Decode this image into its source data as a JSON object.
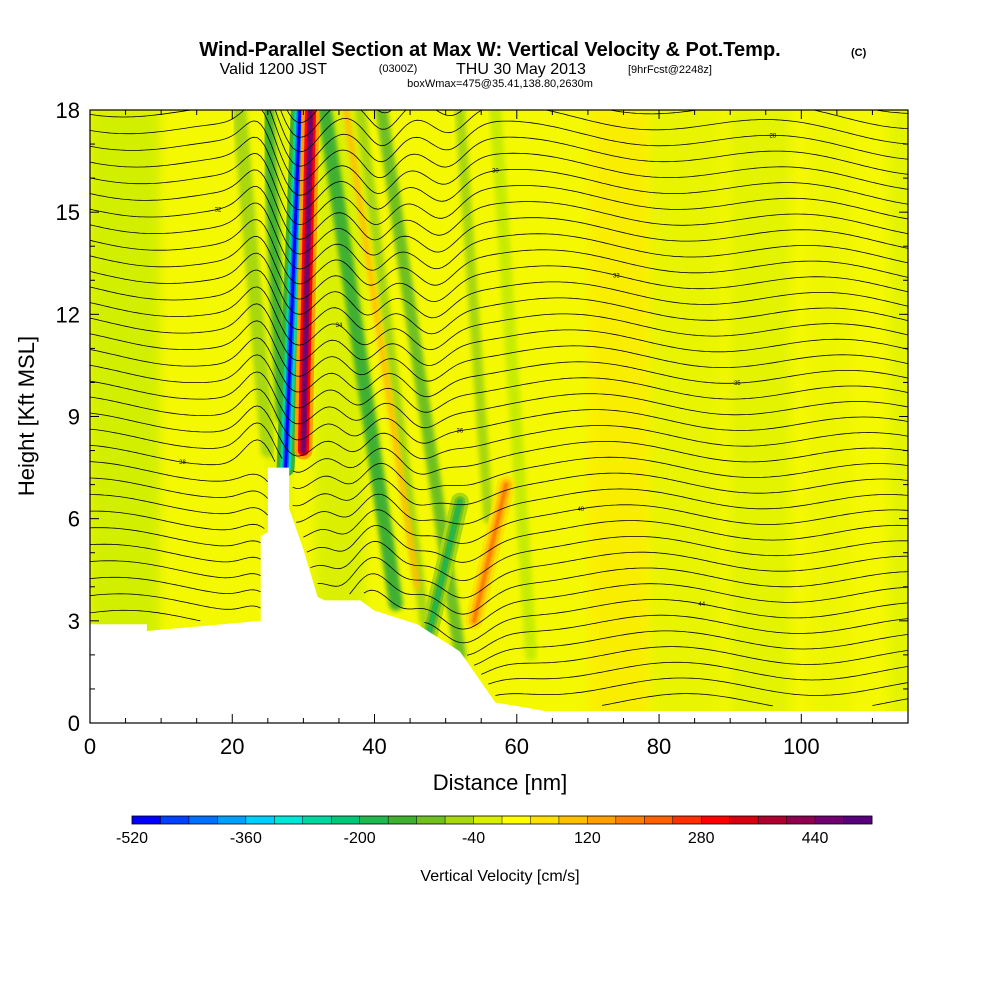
{
  "chart_data": {
    "type": "heatmap",
    "title": "Wind-Parallel Section at Max W: Vertical Velocity & Pot.Temp.",
    "title_mark": "(C)",
    "subtitle_pre": "Valid 1200 JST",
    "subtitle_utc": "(0300Z)",
    "subtitle_post": "THU 30 May 2013",
    "subtitle_fcst": "[9hrFcst@2248z]",
    "subtitle2": "boxWmax=475@35.41,138.80,2630m",
    "xlabel": "Distance [nm]",
    "ylabel": "Height [Kft MSL]",
    "xlim": [
      0,
      115
    ],
    "ylim": [
      0,
      18
    ],
    "x_ticks": [
      0,
      20,
      40,
      60,
      80,
      100
    ],
    "y_ticks": [
      0,
      3,
      6,
      9,
      12,
      15,
      18
    ],
    "colorbar": {
      "label": "Vertical Velocity [cm/s]",
      "min": -520,
      "max": 520,
      "step": 40,
      "tick_labels": [
        "-520",
        "-360",
        "-200",
        "-40",
        "120",
        "280",
        "440"
      ],
      "colors": [
        "#0000ff",
        "#0040ff",
        "#0070ff",
        "#00a0ff",
        "#00d0ff",
        "#00e8d8",
        "#00d8a0",
        "#00c878",
        "#20b850",
        "#40b030",
        "#70c020",
        "#a8d810",
        "#d8f000",
        "#ffff00",
        "#ffe000",
        "#ffc000",
        "#ffa000",
        "#ff8000",
        "#ff6000",
        "#ff3000",
        "#ff0000",
        "#d80010",
        "#b00030",
        "#900050",
        "#700070",
        "#58007c"
      ]
    },
    "terrain_profile": [
      [
        0,
        2.9
      ],
      [
        8,
        2.9
      ],
      [
        8,
        2.7
      ],
      [
        24,
        3.0
      ],
      [
        24,
        5.5
      ],
      [
        25,
        5.6
      ],
      [
        25,
        7.5
      ],
      [
        28,
        7.5
      ],
      [
        28,
        6.3
      ],
      [
        30,
        5.1
      ],
      [
        32,
        3.7
      ],
      [
        33,
        3.6
      ],
      [
        38,
        3.6
      ],
      [
        40,
        3.3
      ],
      [
        46,
        2.9
      ],
      [
        52,
        2.1
      ],
      [
        55,
        1.2
      ],
      [
        57,
        0.6
      ],
      [
        60,
        0.5
      ],
      [
        64,
        0.35
      ],
      [
        115,
        0.35
      ]
    ],
    "vertical_velocity_features": [
      {
        "kind": "downdraft",
        "x": 27.5,
        "y_range": [
          7.5,
          18
        ],
        "value": -520
      },
      {
        "kind": "updraft",
        "x": 30.0,
        "y_range": [
          8,
          18
        ],
        "value": 475
      },
      {
        "kind": "downdraft",
        "x": 47.5,
        "y_range": [
          2.5,
          6.5
        ],
        "value": -200
      },
      {
        "kind": "updraft",
        "x": 54.0,
        "y_range": [
          3,
          7
        ],
        "value": 160
      }
    ],
    "theta_contour_labels": [
      "48",
      "45",
      "44",
      "42",
      "40",
      "38",
      "36",
      "35",
      "34",
      "33",
      "32",
      "30",
      "28",
      "26",
      "24",
      "22",
      "20",
      "18",
      "16",
      "14",
      "12",
      "10",
      "08",
      "06",
      "04",
      "02",
      "00"
    ]
  }
}
